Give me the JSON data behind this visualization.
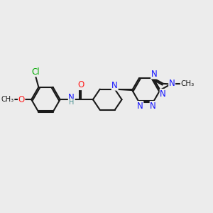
{
  "background_color": "#ececec",
  "bond_color": "#1a1a1a",
  "bond_width": 1.5,
  "atom_colors": {
    "N": "#1414ff",
    "O": "#ff2020",
    "Cl": "#00aa00",
    "C": "#1a1a1a",
    "H": "#4a9090"
  },
  "figsize": [
    3.0,
    3.0
  ],
  "dpi": 100
}
